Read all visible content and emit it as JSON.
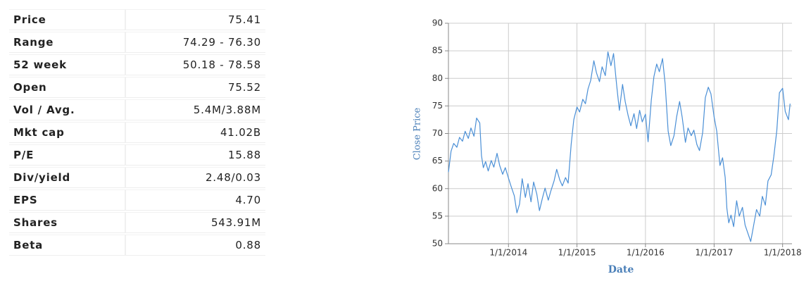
{
  "table": {
    "rows": [
      [
        "Price",
        "75.41"
      ],
      [
        "Range",
        "74.29 - 76.30"
      ],
      [
        "52 week",
        "50.18 - 78.58"
      ],
      [
        "Open",
        "75.52"
      ],
      [
        "Vol / Avg.",
        "5.4M/3.88M"
      ],
      [
        "Mkt cap",
        "41.02B"
      ],
      [
        "P/E",
        "15.88"
      ],
      [
        "Div/yield",
        "2.48/0.03"
      ],
      [
        "EPS",
        "4.70"
      ],
      [
        "Shares",
        "543.91M"
      ],
      [
        "Beta",
        "0.88"
      ]
    ]
  },
  "chart_data": {
    "type": "line",
    "x_label": "Date",
    "y_label": "Close Price",
    "color": "#4a8fd6",
    "grid": true,
    "xlim": [
      "2013-02-15",
      "2018-02-20"
    ],
    "xticks": [
      {
        "value": "2014-01-01",
        "label": "1/1/2014"
      },
      {
        "value": "2015-01-01",
        "label": "1/1/2015"
      },
      {
        "value": "2016-01-01",
        "label": "1/1/2016"
      },
      {
        "value": "2017-01-01",
        "label": "1/1/2017"
      },
      {
        "value": "2018-01-01",
        "label": "1/1/2018"
      }
    ],
    "ylim": [
      50,
      90
    ],
    "yticks": [
      50,
      55,
      60,
      65,
      70,
      75,
      80,
      85,
      90
    ],
    "x": [
      "2013-02-15",
      "2013-03-01",
      "2013-03-15",
      "2013-04-01",
      "2013-04-15",
      "2013-05-01",
      "2013-05-15",
      "2013-06-01",
      "2013-06-15",
      "2013-07-01",
      "2013-07-15",
      "2013-08-01",
      "2013-08-10",
      "2013-08-20",
      "2013-09-01",
      "2013-09-15",
      "2013-10-01",
      "2013-10-15",
      "2013-11-01",
      "2013-11-15",
      "2013-12-01",
      "2013-12-15",
      "2014-01-01",
      "2014-01-15",
      "2014-02-01",
      "2014-02-15",
      "2014-03-01",
      "2014-03-15",
      "2014-04-01",
      "2014-04-15",
      "2014-05-01",
      "2014-05-15",
      "2014-06-01",
      "2014-06-15",
      "2014-07-01",
      "2014-07-15",
      "2014-08-01",
      "2014-08-15",
      "2014-09-01",
      "2014-09-15",
      "2014-10-01",
      "2014-10-15",
      "2014-11-01",
      "2014-11-15",
      "2014-12-01",
      "2014-12-15",
      "2015-01-01",
      "2015-01-15",
      "2015-02-01",
      "2015-02-15",
      "2015-03-01",
      "2015-03-15",
      "2015-04-01",
      "2015-04-15",
      "2015-05-01",
      "2015-05-15",
      "2015-06-01",
      "2015-06-15",
      "2015-07-01",
      "2015-07-15",
      "2015-08-01",
      "2015-08-15",
      "2015-09-01",
      "2015-09-15",
      "2015-10-01",
      "2015-10-15",
      "2015-11-01",
      "2015-11-15",
      "2015-12-01",
      "2015-12-15",
      "2016-01-01",
      "2016-01-15",
      "2016-02-01",
      "2016-02-15",
      "2016-03-01",
      "2016-03-15",
      "2016-04-01",
      "2016-04-15",
      "2016-05-01",
      "2016-05-15",
      "2016-06-01",
      "2016-06-15",
      "2016-07-01",
      "2016-07-15",
      "2016-08-01",
      "2016-08-15",
      "2016-09-01",
      "2016-09-15",
      "2016-10-01",
      "2016-10-15",
      "2016-11-01",
      "2016-11-15",
      "2016-12-01",
      "2016-12-15",
      "2017-01-01",
      "2017-01-15",
      "2017-02-01",
      "2017-02-15",
      "2017-03-01",
      "2017-03-10",
      "2017-03-20",
      "2017-04-01",
      "2017-04-15",
      "2017-05-01",
      "2017-05-15",
      "2017-06-01",
      "2017-06-15",
      "2017-07-01",
      "2017-07-15",
      "2017-08-01",
      "2017-08-15",
      "2017-09-01",
      "2017-09-15",
      "2017-10-01",
      "2017-10-15",
      "2017-11-01",
      "2017-11-15",
      "2017-12-01",
      "2017-12-15",
      "2018-01-01",
      "2018-01-15",
      "2018-02-01",
      "2018-02-10"
    ],
    "values": [
      63.0,
      66.8,
      68.2,
      67.5,
      69.3,
      68.6,
      70.4,
      69.1,
      71.0,
      69.5,
      72.8,
      71.9,
      66.0,
      63.8,
      64.9,
      63.2,
      65.1,
      63.9,
      66.4,
      64.2,
      62.6,
      63.8,
      61.9,
      60.4,
      58.7,
      55.6,
      57.2,
      61.8,
      58.4,
      60.9,
      57.6,
      61.2,
      59.0,
      56.0,
      58.3,
      60.1,
      57.9,
      59.6,
      61.4,
      63.5,
      61.6,
      60.5,
      62.0,
      61.0,
      68.0,
      72.5,
      74.8,
      73.9,
      76.2,
      75.4,
      78.1,
      79.6,
      83.2,
      81.0,
      79.4,
      82.1,
      80.5,
      84.8,
      82.3,
      84.5,
      78.6,
      74.2,
      78.9,
      75.8,
      73.2,
      71.4,
      73.6,
      70.9,
      74.2,
      72.1,
      73.5,
      68.5,
      76.0,
      80.3,
      82.6,
      81.2,
      83.6,
      79.0,
      70.4,
      67.8,
      69.6,
      73.0,
      75.8,
      72.9,
      68.4,
      71.0,
      69.6,
      70.6,
      68.0,
      66.9,
      70.2,
      76.5,
      78.4,
      77.2,
      73.0,
      70.4,
      64.2,
      65.6,
      62.0,
      56.4,
      53.8,
      55.2,
      53.1,
      57.8,
      55.0,
      56.6,
      53.4,
      51.8,
      50.4,
      53.6,
      56.2,
      55.0,
      58.6,
      57.0,
      61.4,
      62.5,
      65.8,
      70.5,
      77.4,
      78.2,
      74.0,
      72.5,
      75.4
    ]
  }
}
